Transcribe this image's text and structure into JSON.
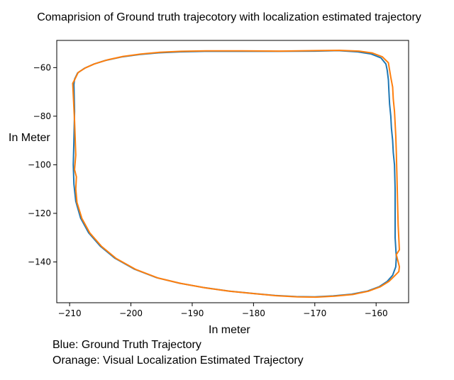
{
  "figure": {
    "title": "Comaprision of Ground truth trajecotory with localization estimated trajectory",
    "notes": [
      "Blue: Ground Truth Trajectory",
      "Oranage: Visual Localization Estimated Trajectory"
    ]
  },
  "chart_data": {
    "type": "line",
    "title": "Comaprision of Ground truth trajecotory with localization estimated trajectory",
    "xlabel": "In meter",
    "ylabel": "In Meter",
    "xlim": [
      -212.1,
      -154.7
    ],
    "ylim": [
      -156.8,
      -48.8
    ],
    "x_ticks": [
      -210,
      -200,
      -190,
      -180,
      -170,
      -160
    ],
    "y_ticks": [
      -60,
      -80,
      -100,
      -120,
      -140
    ],
    "x_tick_labels": [
      "−210",
      "−200",
      "−190",
      "−180",
      "−170",
      "−160"
    ],
    "y_tick_labels": [
      "−60",
      "−80",
      "−100",
      "−120",
      "−140"
    ],
    "grid": false,
    "legend": "none",
    "series": [
      {
        "color": "#1f77b4",
        "x": [
          -209.3,
          -209.2,
          -208.7,
          -207.6,
          -206.1,
          -204.1,
          -201.5,
          -198.6,
          -195.5,
          -192.0,
          -188.0,
          -182.0,
          -176.0,
          -170.0,
          -166.2,
          -163.0,
          -160.8,
          -159.2,
          -158.4,
          -158.2,
          -158.0,
          -157.9,
          -157.8,
          -157.6,
          -157.5,
          -157.3,
          -157.2,
          -157.0,
          -156.9,
          -156.9,
          -156.9,
          -156.7,
          -156.8,
          -157.3,
          -158.2,
          -159.5,
          -161.4,
          -164.0,
          -167.0,
          -170.0,
          -173.0,
          -176.5,
          -180.0,
          -184.0,
          -188.0,
          -192.0,
          -195.8,
          -199.4,
          -202.6,
          -205.0,
          -206.9,
          -208.2,
          -209.0,
          -209.3,
          -209.4,
          -209.3,
          -209.2,
          -209.3
        ],
        "y": [
          -67.0,
          -64.8,
          -62.2,
          -60.3,
          -58.6,
          -57.0,
          -55.6,
          -54.6,
          -53.9,
          -53.5,
          -53.3,
          -53.3,
          -53.3,
          -53.2,
          -53.0,
          -53.5,
          -54.4,
          -56.0,
          -58.5,
          -61.0,
          -65.0,
          -70.0,
          -75.0,
          -80.0,
          -85.0,
          -90.0,
          -95.0,
          -100.0,
          -110.0,
          -120.0,
          -130.0,
          -138.0,
          -142.0,
          -145.5,
          -148.0,
          -150.2,
          -152.0,
          -153.3,
          -154.0,
          -154.4,
          -154.3,
          -153.8,
          -153.0,
          -152.0,
          -150.6,
          -148.8,
          -146.5,
          -143.0,
          -138.5,
          -133.5,
          -128.0,
          -122.0,
          -115.0,
          -108.0,
          -100.0,
          -90.0,
          -78.0,
          -67.0
        ]
      },
      {
        "color": "#ff7f0e",
        "x": [
          -209.5,
          -209.1,
          -208.6,
          -207.4,
          -205.9,
          -203.8,
          -201.3,
          -198.4,
          -195.3,
          -191.8,
          -187.8,
          -181.8,
          -175.8,
          -169.8,
          -166.0,
          -162.8,
          -160.6,
          -159.0,
          -158.0,
          -157.8,
          -157.6,
          -157.3,
          -157.2,
          -157.0,
          -156.9,
          -156.8,
          -156.7,
          -156.6,
          -156.5,
          -156.4,
          -156.2,
          -156.7,
          -156.4,
          -156.2,
          -156.3,
          -157.0,
          -157.9,
          -159.3,
          -161.2,
          -163.8,
          -166.8,
          -169.8,
          -172.8,
          -176.3,
          -179.8,
          -183.8,
          -187.8,
          -191.8,
          -195.6,
          -199.2,
          -202.4,
          -204.8,
          -206.7,
          -208.0,
          -208.8,
          -209.0,
          -208.9,
          -209.2,
          -209.0,
          -209.2,
          -209.5
        ],
        "y": [
          -66.5,
          -64.6,
          -62.0,
          -60.1,
          -58.4,
          -56.8,
          -55.4,
          -54.4,
          -53.7,
          -53.3,
          -53.1,
          -53.1,
          -53.2,
          -53.0,
          -52.9,
          -53.2,
          -54.0,
          -55.5,
          -58.0,
          -61.0,
          -64.0,
          -68.0,
          -73.0,
          -78.0,
          -83.0,
          -88.0,
          -95.0,
          -105.0,
          -115.0,
          -125.0,
          -135.0,
          -137.0,
          -140.0,
          -142.0,
          -144.0,
          -145.8,
          -148.0,
          -150.2,
          -152.0,
          -153.4,
          -154.1,
          -154.5,
          -154.4,
          -153.9,
          -153.1,
          -152.1,
          -150.7,
          -148.9,
          -146.6,
          -143.1,
          -138.6,
          -133.6,
          -128.1,
          -122.1,
          -115.5,
          -110.0,
          -105.0,
          -102.0,
          -96.0,
          -82.0,
          -66.5
        ]
      }
    ]
  }
}
